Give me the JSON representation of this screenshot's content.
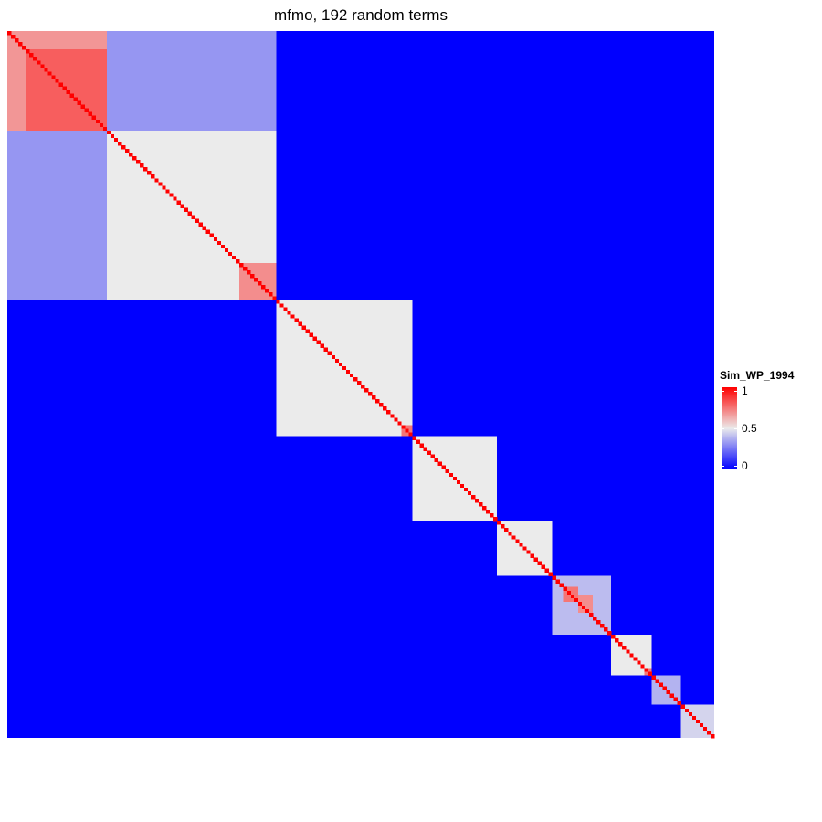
{
  "chart_data": {
    "type": "heatmap",
    "title": "mfmo, 192 random terms",
    "n_terms": 192,
    "colors": {
      "low": "#0000ff",
      "mid": "#ebebeb",
      "high": "#ff0000"
    },
    "background_value": 0,
    "diagonal_value": 1,
    "blocks": [
      {
        "start": 0,
        "end": 27,
        "value": 0.68
      },
      {
        "start": 27,
        "end": 73,
        "value": 0.5
      },
      {
        "start": 73,
        "end": 110,
        "value": 0.5
      },
      {
        "start": 110,
        "end": 133,
        "value": 0.5
      },
      {
        "start": 133,
        "end": 148,
        "value": 0.5
      },
      {
        "start": 148,
        "end": 164,
        "value": 0.4
      },
      {
        "start": 164,
        "end": 175,
        "value": 0.5
      },
      {
        "start": 175,
        "end": 183,
        "value": 0.38
      },
      {
        "start": 183,
        "end": 192,
        "value": 0.45
      }
    ],
    "sub_blocks": [
      {
        "rows": [
          0,
          27
        ],
        "cols": [
          27,
          73
        ],
        "value": 0.32
      },
      {
        "rows": [
          27,
          73
        ],
        "cols": [
          0,
          27
        ],
        "value": 0.32
      },
      {
        "rows": [
          5,
          27
        ],
        "cols": [
          5,
          27
        ],
        "value": 0.8
      },
      {
        "rows": [
          63,
          73
        ],
        "cols": [
          63,
          73
        ],
        "value": 0.7
      },
      {
        "rows": [
          107,
          110
        ],
        "cols": [
          107,
          110
        ],
        "value": 0.75
      },
      {
        "rows": [
          151,
          155
        ],
        "cols": [
          151,
          155
        ],
        "value": 0.75
      },
      {
        "rows": [
          153,
          158
        ],
        "cols": [
          155,
          159
        ],
        "value": 0.7
      },
      {
        "rows": [
          173,
          175
        ],
        "cols": [
          173,
          175
        ],
        "value": 0.75
      }
    ],
    "legend": {
      "title": "Sim_WP_1994",
      "ticks": [
        {
          "value": 1,
          "label": "1"
        },
        {
          "value": 0.5,
          "label": "0.5"
        },
        {
          "value": 0,
          "label": "0"
        }
      ],
      "placement": "right"
    }
  }
}
